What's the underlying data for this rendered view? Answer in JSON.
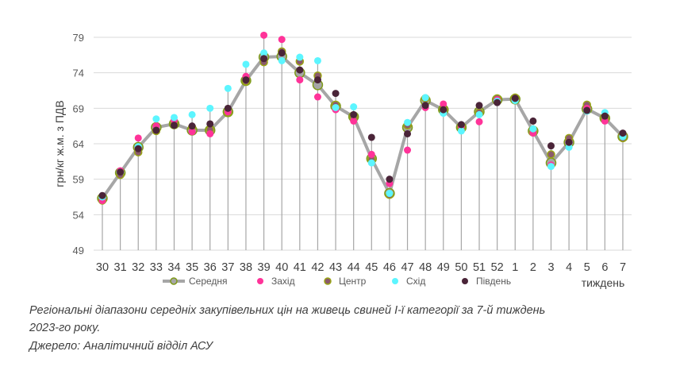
{
  "chart_data": {
    "type": "line",
    "ylabel": "грн/кг ж.м. з ПДВ",
    "xlabel": "тиждень",
    "ylim": [
      49,
      79
    ],
    "yticks": [
      49,
      54,
      59,
      64,
      69,
      74,
      79
    ],
    "grid": true,
    "legend": "bottom",
    "categories": [
      "30",
      "31",
      "32",
      "33",
      "34",
      "35",
      "36",
      "37",
      "38",
      "39",
      "40",
      "41",
      "42",
      "43",
      "44",
      "45",
      "46",
      "47",
      "48",
      "49",
      "50",
      "51",
      "52",
      "1",
      "2",
      "3",
      "4",
      "5",
      "6",
      "7"
    ],
    "series": [
      {
        "name": "Середня",
        "color": "#A6A6A6",
        "marker_edge": "#7F9A1A",
        "values": [
          56.3,
          59.9,
          63.5,
          66.3,
          66.8,
          65.9,
          65.9,
          68.5,
          72.9,
          76.2,
          76.3,
          74.0,
          72.3,
          69.3,
          67.8,
          61.9,
          57.0,
          66.3,
          70.1,
          68.8,
          66.3,
          68.5,
          70.2,
          70.3,
          65.8,
          61.3,
          64.2,
          68.9,
          67.6,
          65.0
        ]
      },
      {
        "name": "Захід",
        "color": "#FF3399",
        "values": [
          56.0,
          60.2,
          64.8,
          66.5,
          67.3,
          65.7,
          65.4,
          68.5,
          73.5,
          79.3,
          78.7,
          73.0,
          70.6,
          68.8,
          67.2,
          62.5,
          58.4,
          63.1,
          69.1,
          69.6,
          66.5,
          67.1,
          70.2,
          70.2,
          65.5,
          61.0,
          64.2,
          69.0,
          67.2,
          65.2
        ]
      },
      {
        "name": "Центр",
        "color": "#8B5A6B",
        "marker_edge": "#9AA516",
        "values": [
          56.0,
          59.6,
          62.8,
          65.8,
          66.8,
          66.3,
          66.0,
          68.4,
          72.8,
          75.5,
          77.0,
          75.6,
          73.6,
          69.5,
          67.8,
          61.8,
          56.8,
          66.6,
          70.4,
          68.8,
          66.3,
          68.4,
          70.4,
          70.5,
          65.6,
          62.5,
          64.8,
          69.5,
          67.5,
          64.8
        ]
      },
      {
        "name": "Схід",
        "color": "#5CF5FF",
        "values": [
          56.5,
          60.0,
          63.6,
          67.5,
          67.7,
          68.1,
          69.0,
          71.8,
          75.2,
          76.8,
          75.7,
          76.2,
          75.7,
          69.1,
          69.2,
          61.3,
          57.0,
          67.0,
          70.5,
          68.3,
          65.8,
          68.1,
          70.0,
          70.1,
          66.1,
          60.8,
          63.5,
          68.6,
          68.4,
          65.0
        ]
      },
      {
        "name": "Південь",
        "color": "#4A2438",
        "values": [
          56.7,
          60.0,
          63.3,
          65.9,
          66.6,
          66.5,
          66.8,
          69.0,
          73.0,
          76.0,
          76.8,
          74.4,
          73.0,
          71.1,
          68.1,
          64.9,
          59.0,
          65.4,
          69.4,
          68.8,
          66.7,
          69.4,
          69.8,
          70.4,
          67.2,
          63.7,
          64.2,
          68.7,
          67.9,
          65.5
        ]
      }
    ]
  },
  "caption": {
    "line1": "Регіональні діапазони середніх закупівельних цін на живець свиней І-ї категорії за 7-й тиждень",
    "line2": "2023-го року.",
    "source": "Джерело: Аналітичний відділ АСУ"
  }
}
